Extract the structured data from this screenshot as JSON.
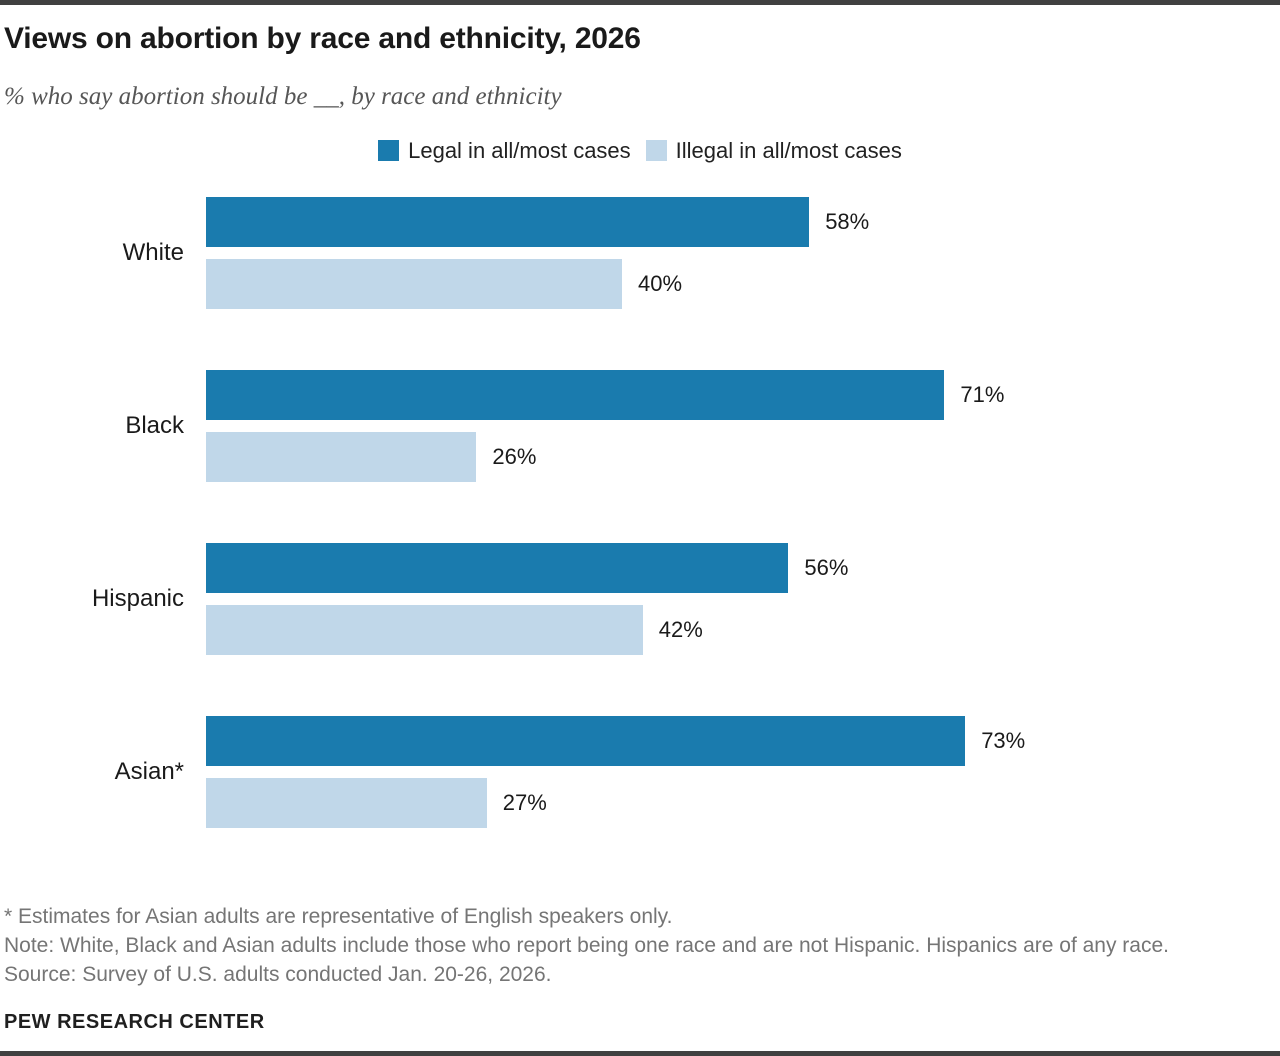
{
  "header": {
    "title": "Views on abortion by race and ethnicity, 2026",
    "subtitle": "% who say abortion should be __, by race and ethnicity"
  },
  "legend": [
    {
      "label": "Legal in all/most cases",
      "color": "#1a7bae"
    },
    {
      "label": "Illegal in all/most cases",
      "color": "#c0d7e9"
    }
  ],
  "chart_data": {
    "type": "bar",
    "orientation": "horizontal",
    "categories": [
      "White",
      "Black",
      "Hispanic",
      "Asian*"
    ],
    "series": [
      {
        "name": "Legal in all/most cases",
        "color": "#1a7bae",
        "values": [
          58,
          71,
          56,
          73
        ]
      },
      {
        "name": "Illegal in all/most cases",
        "color": "#c0d7e9",
        "values": [
          40,
          26,
          42,
          27
        ]
      }
    ],
    "value_suffix": "%",
    "xlim": [
      0,
      100
    ],
    "grid": false,
    "data_labels": true,
    "legend_position": "top-center"
  },
  "footnotes": {
    "asterisk": "* Estimates for Asian adults are representative of English speakers only.",
    "note": "Note: White, Black and Asian adults include those who report being one race and are not Hispanic. Hispanics are of any race.",
    "source": "Source: Survey of U.S. adults conducted Jan. 20-26, 2026."
  },
  "footer": {
    "brand": "PEW RESEARCH CENTER"
  }
}
